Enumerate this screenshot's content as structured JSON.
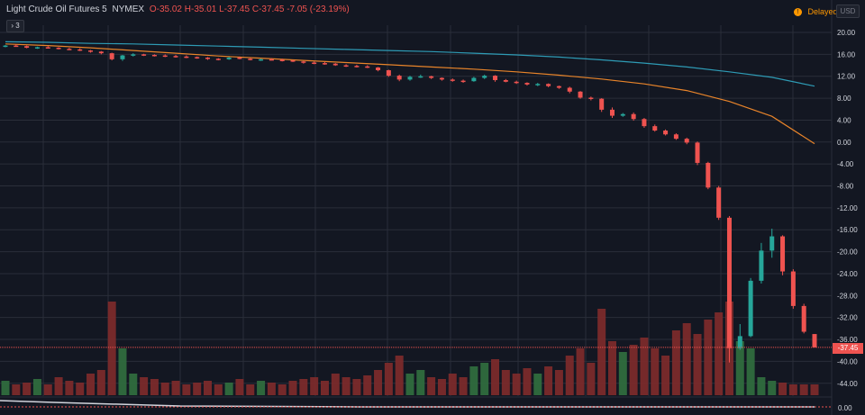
{
  "header": {
    "symbol_name": "Light Crude Oil Futures",
    "interval": "5",
    "exchange": "NYMEX",
    "open_text": "O-35.02",
    "high_text": "H-35.01",
    "low_text": "L-37.45",
    "close_text": "C-37.45",
    "change_text": "-7.05 (-23.19%)",
    "collapse_label": "3",
    "delayed_label": "Delayed",
    "currency_label": "USD"
  },
  "last_price_label": "-37.45",
  "volume_pane_value": "0.00",
  "colors": {
    "background": "#131722",
    "grid": "#2a2e39",
    "up": "#26a69a",
    "down": "#ef5350",
    "vol_up": "#2f6b3e",
    "vol_down": "#7a2a2b",
    "ma_slow": "#2e9bb5",
    "ma_fast": "#e8842a",
    "delayed": "#ff9800"
  },
  "chart_data": {
    "type": "candlestick",
    "y_ticks": [
      "20.00",
      "16.00",
      "12.00",
      "8.00",
      "4.00",
      "0.00",
      "-4.00",
      "-8.00",
      "-12.00",
      "-16.00",
      "-20.00",
      "-24.00",
      "-28.00",
      "-32.00",
      "-36.00",
      "-40.00",
      "-44.00"
    ],
    "ylim": [
      -46,
      22
    ],
    "last_price": -37.45,
    "series": [
      {
        "name": "",
        "kind": "moving_average",
        "color": "#2e9bb5",
        "values": [
          18.3,
          18.2,
          18.0,
          17.9,
          17.7,
          17.5,
          17.3,
          17.1,
          16.9,
          16.7,
          16.5,
          16.2,
          15.9,
          15.5,
          15.0,
          14.4,
          13.7,
          12.8,
          11.8,
          10.2
        ]
      },
      {
        "name": "",
        "kind": "moving_average",
        "color": "#e8842a",
        "values": [
          17.9,
          17.6,
          17.2,
          16.7,
          16.2,
          15.7,
          15.3,
          14.9,
          14.5,
          14.1,
          13.7,
          13.3,
          12.8,
          12.2,
          11.5,
          10.6,
          9.4,
          7.4,
          4.7,
          -0.3
        ]
      }
    ],
    "candles_ohlc": [
      [
        17.5,
        17.7,
        17.3,
        17.6
      ],
      [
        17.6,
        17.8,
        17.4,
        17.5
      ],
      [
        17.5,
        17.6,
        17.1,
        17.2
      ],
      [
        17.2,
        17.4,
        17.0,
        17.3
      ],
      [
        17.3,
        17.5,
        17.1,
        17.2
      ],
      [
        17.2,
        17.3,
        16.9,
        17.0
      ],
      [
        17.0,
        17.2,
        16.8,
        16.9
      ],
      [
        16.9,
        17.1,
        16.6,
        16.7
      ],
      [
        16.7,
        16.8,
        16.3,
        16.5
      ],
      [
        16.5,
        16.6,
        16.0,
        16.2
      ],
      [
        16.2,
        16.3,
        14.9,
        15.1
      ],
      [
        15.1,
        15.9,
        14.8,
        15.8
      ],
      [
        15.8,
        16.2,
        15.6,
        16.0
      ],
      [
        16.0,
        16.1,
        15.7,
        15.9
      ],
      [
        15.9,
        16.0,
        15.6,
        15.8
      ],
      [
        15.8,
        16.0,
        15.5,
        15.7
      ],
      [
        15.7,
        15.9,
        15.4,
        15.6
      ],
      [
        15.6,
        15.8,
        15.3,
        15.5
      ],
      [
        15.5,
        15.6,
        15.2,
        15.4
      ],
      [
        15.4,
        15.5,
        15.0,
        15.2
      ],
      [
        15.2,
        15.3,
        14.9,
        15.1
      ],
      [
        15.1,
        15.5,
        15.0,
        15.4
      ],
      [
        15.4,
        15.6,
        15.1,
        15.2
      ],
      [
        15.2,
        15.3,
        14.9,
        15.0
      ],
      [
        15.0,
        15.2,
        14.8,
        15.1
      ],
      [
        15.1,
        15.3,
        14.9,
        15.0
      ],
      [
        15.0,
        15.2,
        14.7,
        14.9
      ],
      [
        14.9,
        15.0,
        14.6,
        14.7
      ],
      [
        14.7,
        14.8,
        14.3,
        14.5
      ],
      [
        14.5,
        14.7,
        14.2,
        14.4
      ],
      [
        14.4,
        14.6,
        14.1,
        14.3
      ],
      [
        14.3,
        14.4,
        13.9,
        14.0
      ],
      [
        14.0,
        14.2,
        13.7,
        13.9
      ],
      [
        13.9,
        14.1,
        13.6,
        13.8
      ],
      [
        13.8,
        14.0,
        13.5,
        13.6
      ],
      [
        13.6,
        13.7,
        12.9,
        13.1
      ],
      [
        13.1,
        13.2,
        11.9,
        12.1
      ],
      [
        12.1,
        12.3,
        11.1,
        11.4
      ],
      [
        11.4,
        12.1,
        11.2,
        11.9
      ],
      [
        11.9,
        12.3,
        11.7,
        12.0
      ],
      [
        12.0,
        12.1,
        11.5,
        11.7
      ],
      [
        11.7,
        11.8,
        11.2,
        11.4
      ],
      [
        11.4,
        11.6,
        11.0,
        11.2
      ],
      [
        11.2,
        11.4,
        10.8,
        11.1
      ],
      [
        11.1,
        11.9,
        11.0,
        11.7
      ],
      [
        11.7,
        12.3,
        11.5,
        12.1
      ],
      [
        12.1,
        12.2,
        11.0,
        11.3
      ],
      [
        11.3,
        11.5,
        10.9,
        11.0
      ],
      [
        11.0,
        11.2,
        10.6,
        10.8
      ],
      [
        10.8,
        10.9,
        10.3,
        10.5
      ],
      [
        10.5,
        10.8,
        10.2,
        10.6
      ],
      [
        10.6,
        10.7,
        10.0,
        10.2
      ],
      [
        10.2,
        10.3,
        9.7,
        9.9
      ],
      [
        9.9,
        10.1,
        8.9,
        9.2
      ],
      [
        9.2,
        9.3,
        7.9,
        8.1
      ],
      [
        8.1,
        8.3,
        7.6,
        7.9
      ],
      [
        7.9,
        8.0,
        5.5,
        5.9
      ],
      [
        5.9,
        6.3,
        4.4,
        4.8
      ],
      [
        4.8,
        5.3,
        4.6,
        5.1
      ],
      [
        5.1,
        5.4,
        3.9,
        4.2
      ],
      [
        4.2,
        4.4,
        2.6,
        2.9
      ],
      [
        2.9,
        3.2,
        1.9,
        2.1
      ],
      [
        2.1,
        2.3,
        1.2,
        1.4
      ],
      [
        1.4,
        1.6,
        0.4,
        0.6
      ],
      [
        0.6,
        0.8,
        -0.4,
        -0.1
      ],
      [
        -0.1,
        0.1,
        -4.2,
        -3.8
      ],
      [
        -3.8,
        -3.6,
        -8.6,
        -8.3
      ],
      [
        -8.3,
        -8.0,
        -14.2,
        -13.8
      ],
      [
        -13.8,
        -13.5,
        -40.2,
        -37.6
      ],
      [
        -37.6,
        -33.2,
        -37.9,
        -35.4
      ],
      [
        -35.4,
        -24.8,
        -35.6,
        -25.3
      ],
      [
        -25.3,
        -18.4,
        -25.8,
        -19.8
      ],
      [
        -19.8,
        -15.8,
        -21.1,
        -17.2
      ],
      [
        -17.2,
        -17.0,
        -24.3,
        -23.6
      ],
      [
        -23.6,
        -23.2,
        -30.4,
        -29.9
      ],
      [
        -29.9,
        -29.5,
        -34.9,
        -34.6
      ],
      [
        -35.02,
        -35.01,
        -37.45,
        -37.45
      ]
    ],
    "volume_levels": [
      0.4,
      0.3,
      0.35,
      0.45,
      0.3,
      0.5,
      0.4,
      0.35,
      0.6,
      0.7,
      2.6,
      1.3,
      0.6,
      0.5,
      0.45,
      0.35,
      0.4,
      0.3,
      0.35,
      0.4,
      0.3,
      0.35,
      0.45,
      0.3,
      0.4,
      0.35,
      0.3,
      0.4,
      0.45,
      0.5,
      0.4,
      0.6,
      0.5,
      0.45,
      0.55,
      0.7,
      0.9,
      1.1,
      0.6,
      0.7,
      0.5,
      0.45,
      0.6,
      0.5,
      0.8,
      0.9,
      1.0,
      0.7,
      0.6,
      0.75,
      0.6,
      0.8,
      0.7,
      1.1,
      1.3,
      0.9,
      2.4,
      1.5,
      1.2,
      1.4,
      1.6,
      1.3,
      1.1,
      1.8,
      2.0,
      1.7,
      2.1,
      2.3,
      2.6,
      1.5,
      1.3,
      0.5,
      0.4,
      0.35,
      0.3,
      0.3,
      0.3
    ]
  }
}
